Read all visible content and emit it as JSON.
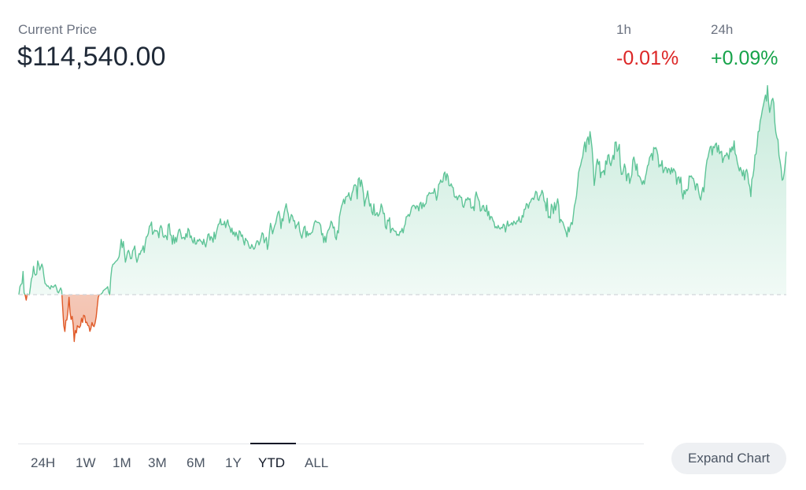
{
  "header": {
    "label": "Current Price",
    "price": "$114,540.00"
  },
  "changes": [
    {
      "period": "1h",
      "value": "-0.01%",
      "color": "#dc2626"
    },
    {
      "period": "24h",
      "value": "+0.09%",
      "color": "#16a34a"
    }
  ],
  "timeframes": [
    "24H",
    "1W",
    "1M",
    "3M",
    "6M",
    "1Y",
    "YTD",
    "ALL"
  ],
  "selected_timeframe": "YTD",
  "expand_button": "Expand Chart",
  "colors": {
    "up_line": "#5ec497",
    "down_line": "#e05a28",
    "baseline": "#d1d5db"
  },
  "chart_data": {
    "type": "area",
    "baseline_value": 0,
    "values": [
      0.0,
      10.1,
      13.0,
      14.1,
      29.4,
      2.3,
      -0.7,
      -7.0,
      0.8,
      0.0,
      -0.3,
      9.3,
      19.9,
      23.0,
      35.9,
      26.6,
      24.7,
      26.1,
      42.8,
      38.2,
      31.1,
      35.1,
      38.8,
      34.1,
      23.4,
      14.2,
      13.1,
      10.8,
      11.1,
      8.9,
      7.1,
      11.4,
      9.9,
      9.3,
      11.2,
      12.4,
      8.4,
      3.4,
      2.3,
      5.5,
      8.5,
      5.0,
      -17.7,
      -39.3,
      -46.8,
      -32.6,
      -32.0,
      -20.8,
      -3.4,
      -22.3,
      -31.4,
      -27.6,
      -38.7,
      -59.5,
      -45.4,
      -48.6,
      -39.4,
      -40.7,
      -41.9,
      -39.4,
      -29.9,
      -35.3,
      -26.2,
      -27.1,
      -35.6,
      -35.0,
      -39.1,
      -39.8,
      -46.6,
      -42.6,
      -35.4,
      -39.4,
      -40.6,
      -36.1,
      -28.4,
      -15.7,
      -3.5,
      0.0,
      0.0,
      1.1,
      2.4,
      5.3,
      6.2,
      7.4,
      8.2,
      10.1,
      3.2,
      0.0,
      21.1,
      33.9,
      38.4,
      39.1,
      40.8,
      42.4,
      43.4,
      45.5,
      48.2,
      58.7,
      70.2,
      59.8,
      67.4,
      54.7,
      41.2,
      46.6,
      54.0,
      56.3,
      52.0,
      45.5,
      46.0,
      55.8,
      57.8,
      61.8,
      48.4,
      41.1,
      45.6,
      52.1,
      51.0,
      55.6,
      56.4,
      61.9,
      53.5,
      64.7,
      73.0,
      74.3,
      77.8,
      86.7,
      88.0,
      92.2,
      76.5,
      78.9,
      82.0,
      80.6,
      81.3,
      79.7,
      72.2,
      84.2,
      87.7,
      84.4,
      74.2,
      72.5,
      75.4,
      74.3,
      69.7,
      88.5,
      90.1,
      76.4,
      74.9,
      63.9,
      75.3,
      65.1,
      72.8,
      66.9,
      75.1,
      81.9,
      83.1,
      78.0,
      71.1,
      72.2,
      72.8,
      70.1,
      77.4,
      72.8,
      84.1,
      81.8,
      72.3,
      74.6,
      68.6,
      65.5,
      72.4,
      64.2,
      64.3,
      69.4,
      67.9,
      70.5,
      68.3,
      67.1,
      63.7,
      70.3,
      64.2,
      60.5,
      67.8,
      76.2,
      77.2,
      69.1,
      73.8,
      71.6,
      66.5,
      79.3,
      70.6,
      78.1,
      83.6,
      89.3,
      90.1,
      96.2,
      88.6,
      89.4,
      88.8,
      93.1,
      85.1,
      91.1,
      95.0,
      88.1,
      85.4,
      79.0,
      84.6,
      76.3,
      79.6,
      74.0,
      79.3,
      75.4,
      69.1,
      81.1,
      79.7,
      73.9,
      75.9,
      69.0,
      63.0,
      71.6,
      69.1,
      67.9,
      63.1,
      58.8,
      59.0,
      63.6,
      60.7,
      57.6,
      59.3,
      64.5,
      68.3,
      67.8,
      63.1,
      67.1,
      72.7,
      78.6,
      76.8,
      65.8,
      69.6,
      72.7,
      57.4,
      64.3,
      79.8,
      90.5,
      84.8,
      77.2,
      82.9,
      87.6,
      90.7,
      98.2,
      103.9,
      105.9,
      98.9,
      83.9,
      96.3,
      93.6,
      103.4,
      110.0,
      115.3,
      107.3,
      102.3,
      91.1,
      96.3,
      101.7,
      99.5,
      93.5,
      93.9,
      84.0,
      88.0,
      89.4,
      92.4,
      80.9,
      75.3,
      71.6,
      78.8,
      85.3,
      86.9,
      72.9,
      80.4,
      74.8,
      77.8,
      76.4,
      78.4,
      79.1,
      85.1,
      91.3,
      93.9,
      92.3,
      91.6,
      91.7,
      90.7,
      87.8,
      76.0,
      77.6,
      66.1,
      74.0,
      66.5,
      77.0,
      81.4,
      83.1,
      86.6,
      93.3,
      90.9,
      84.5,
      85.9,
      73.3,
      69.8,
      81.1,
      78.3,
      98.5,
      105.9,
      112.2,
      115.8,
      121.2,
      115.4,
      123.8,
      124.6,
      125.1,
      129.4,
      123.0,
      119.6,
      128.6,
      132.3,
      138.7,
      139.6,
      137.9,
      121.6,
      146.5,
      148.3,
      137.2,
      145.6,
      138.6,
      127.6,
      112.3,
      120.1,
      124.1,
      131.8,
      121.5,
      112.3,
      115.5,
      104.7,
      101.4,
      115.0,
      100.5,
      101.6,
      104.3,
      99.5,
      101.7,
      106.0,
      115.0,
      110.9,
      102.9,
      103.2,
      86.1,
      83.3,
      94.7,
      93.4,
      97.6,
      78.7,
      83.2,
      84.4,
      81.6,
      80.4,
      80.6,
      75.3,
      76.4,
      75.0,
      80.1,
      79.6,
      84.1,
      78.4,
      86.0,
      89.4,
      98.8,
      99.4,
      101.8,
      99.4,
      103.7,
      110.5,
      112.7,
      113.5,
      112.4,
      109.0,
      112.9,
      112.1,
      106.3,
      115.4,
      117.3,
      109.2,
      116.4,
      111.4,
      114.4,
      115.8,
      125.7,
      126.4,
      129.6,
      128.4,
      128.7,
      129.2,
      128.6,
      134.7,
      128.3,
      119.9,
      126.5,
      139.8,
      141.4,
      145.6,
      142.7,
      143.3,
      153.2,
      155.7,
      145.1,
      153.5,
      150.0,
      138.5,
      138.1,
      140.8,
      136.9,
      135.8,
      124.6,
      123.3,
      124.9,
      120.3,
      124.7,
      126.1,
      123.6,
      123.6,
      112.4,
      110.7,
      115.7,
      121.3,
      120.0,
      123.2,
      120.7,
      121.9,
      110.1,
      109.9,
      111.9,
      106.6,
      123.9,
      130.3,
      125.1,
      121.2,
      118.1,
      106.0,
      107.2,
      112.6,
      113.2,
      106.8,
      105.5,
      113.4,
      100.1,
      105.8,
      95.2,
      99.1,
      98.6,
      94.4,
      91.9,
      84.9,
      86.3,
      84.2,
      87.9,
      84.6,
      83.2,
      85.4,
      84.5,
      89.5,
      88.1,
      79.5,
      86.7,
      93.4,
      86.9,
      88.6,
      89.1,
      91.3,
      88.2,
      93.3,
      91.2,
      89.4,
      93.5,
      93.3,
      98.9,
      92.2,
      91.8,
      100.4,
      98.3,
      108.3,
      108.5,
      115.5,
      114.6,
      109.8,
      116.4,
      117.7,
      121.5,
      122.6,
      120.7,
      125.1,
      131.2,
      129.8,
      121.0,
      119.5,
      125.0,
      127.1,
      132.4,
      128.8,
      119.3,
      116.8,
      106.3,
      122.3,
      97.7,
      99.0,
      97.1,
      114.8,
      111.3,
      102.9,
      116.9,
      107.2,
      114.7,
      121.7,
      113.4,
      91.4,
      95.5,
      93.3,
      91.9,
      87.7,
      83.2,
      79.3,
      73.3,
      85.8,
      79.6,
      86.7,
      91.5,
      89.1,
      100.4,
      112.1,
      117.5,
      125.3,
      138.5,
      154.5,
      160.2,
      164.5,
      170.8,
      175.1,
      186.6,
      193.8,
      181.3,
      196.4,
      200.2,
      190.8,
      206.9,
      197.3,
      185.0,
      165.0,
      138.6,
      148.5,
      165.1,
      172.1,
      165.2,
      169.1,
      148.5,
      155.6,
      155.3,
      157.8,
      152.1,
      169.8,
      165.4,
      176.6,
      177.8,
      167.4,
      163.7,
      170.7,
      176.8,
      171.7,
      193.5,
      193.8,
      181.8,
      184.2,
      190.7,
      164.8,
      152.6,
      152.9,
      158.3,
      165.8,
      160.4,
      144.4,
      153.0,
      153.9,
      141.2,
      147.3,
      152.0,
      170.9,
      174.7,
      167.4,
      157.9,
      165.8,
      150.8,
      150.7,
      148.6,
      144.6,
      139.8,
      144.7,
      140.3,
      149.1,
      154.6,
      163.3,
      165.2,
      173.8,
      176.4,
      179.4,
      170.7,
      186.8,
      185.2,
      186.7,
      183.3,
      177.2,
      162.0,
      164.9,
      163.1,
      170.2,
      154.7,
      157.6,
      161.7,
      161.1,
      154.6,
      160.2,
      159.3,
      153.0,
      161.0,
      155.1,
      159.9,
      157.6,
      155.1,
      140.0,
      148.3,
      149.5,
      141.7,
      149.0,
      130.5,
      121.3,
      132.4,
      127.5,
      133.4,
      131.9,
      134.5,
      150.7,
      149.6,
      150.8,
      147.9,
      147.6,
      141.5,
      132.9,
      140.8,
      140.5,
      130.7,
      123.7,
      120.1,
      129.6,
      136.1,
      130.3,
      146.8,
      161.1,
      170.6,
      174.3,
      181.0,
      187.2,
      188.5,
      177.2,
      188.0,
      186.4,
      190.8,
      192.4,
      181.0,
      189.5,
      178.9,
      181.0,
      181.9,
      167.7,
      172.9,
      176.6,
      176.2,
      180.0,
      176.9,
      171.9,
      185.8,
      181.2,
      187.6,
      183.3,
      195.2,
      179.1,
      176.5,
      168.2,
      162.5,
      157.0,
      161.5,
      157.0,
      150.7,
      158.1,
      145.7,
      156.3,
      159.0,
      153.5,
      141.5,
      137.0,
      124.4,
      146.3,
      150.3,
      159.5,
      177.3,
      178.4,
      190.6,
      207.0,
      207.4,
      220.2,
      226.3,
      234.2,
      240.3,
      246.7,
      253.3,
      245.8,
      265.3,
      244.8,
      231.3,
      238.3,
      246.4,
      249.2,
      243.1,
      218.2,
      205.6,
      199.1,
      196.5,
      176.5,
      169.6,
      160.1,
      145.2,
      146.8,
      154.5,
      167.7,
      181.5
    ]
  }
}
